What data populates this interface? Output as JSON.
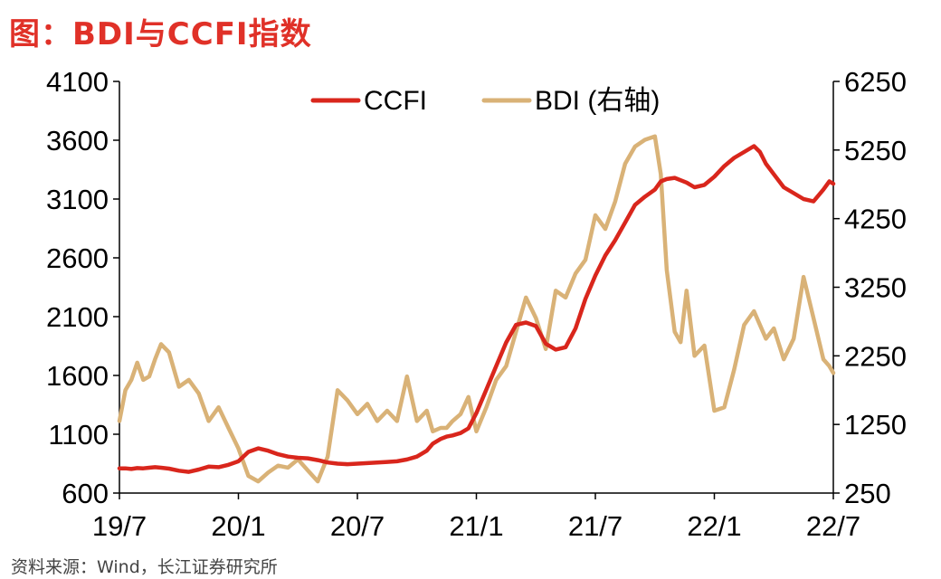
{
  "title": "图：BDI与CCFI指数",
  "source": "资料来源：Wind，长江证券研究所",
  "chart_data": {
    "type": "line",
    "x_ticks": [
      "19/7",
      "20/1",
      "20/7",
      "21/1",
      "21/7",
      "22/1",
      "22/7"
    ],
    "y_left": {
      "ticks": [
        4100,
        3600,
        3100,
        2600,
        2100,
        1600,
        1100,
        600
      ],
      "ylim": [
        600,
        4100
      ]
    },
    "y_right": {
      "ticks": [
        6250,
        5250,
        4250,
        3250,
        2250,
        1250,
        250
      ],
      "ylim": [
        250,
        6250
      ]
    },
    "legend_position": "top-center",
    "series": [
      {
        "name": "CCFI",
        "axis": "left",
        "color": "#d9261c",
        "x": [
          0,
          0.3,
          0.6,
          0.9,
          1.2,
          1.5,
          1.8,
          2.1,
          2.5,
          3.0,
          3.5,
          4.0,
          4.5,
          5.0,
          5.5,
          6.0,
          6.5,
          7.0,
          7.5,
          8.0,
          8.5,
          9.0,
          9.5,
          10.0,
          10.5,
          11.0,
          11.5,
          12.0,
          12.5,
          13.0,
          13.5,
          14.0,
          14.5,
          15.0,
          15.5,
          15.8,
          16.2,
          16.5,
          16.8,
          17.2,
          17.6,
          18.0,
          18.5,
          19.0,
          19.5,
          20.0,
          20.5,
          21.0,
          21.5,
          22.0,
          22.5,
          23.0,
          23.5,
          24.0,
          24.5,
          25.0,
          25.5,
          26.0,
          26.5,
          27.0,
          27.3,
          27.6,
          28.0,
          28.3,
          28.6,
          29.0,
          29.5,
          30.0,
          30.5,
          31.0,
          31.5,
          32.0,
          32.3,
          32.6,
          33.0,
          33.5,
          34.0,
          34.5,
          35.0,
          35.5,
          35.8,
          36.0
        ],
        "values": [
          810,
          810,
          805,
          812,
          810,
          815,
          820,
          815,
          808,
          790,
          780,
          800,
          825,
          820,
          840,
          870,
          950,
          980,
          960,
          930,
          910,
          900,
          895,
          880,
          860,
          850,
          845,
          850,
          855,
          860,
          865,
          870,
          885,
          910,
          960,
          1020,
          1060,
          1080,
          1090,
          1110,
          1150,
          1280,
          1480,
          1680,
          1880,
          2030,
          2050,
          2020,
          1870,
          1820,
          1840,
          2000,
          2250,
          2450,
          2620,
          2750,
          2900,
          3050,
          3120,
          3180,
          3250,
          3270,
          3280,
          3260,
          3240,
          3200,
          3220,
          3290,
          3380,
          3450,
          3500,
          3550,
          3500,
          3400,
          3310,
          3200,
          3150,
          3100,
          3080,
          3180,
          3250,
          3230
        ]
      },
      {
        "name": "BDI (右轴)",
        "axis": "right",
        "color": "#d9b277",
        "x": [
          0,
          0.3,
          0.6,
          0.9,
          1.2,
          1.5,
          1.8,
          2.1,
          2.5,
          3.0,
          3.5,
          4.0,
          4.5,
          5.0,
          5.5,
          6.0,
          6.5,
          7.0,
          7.5,
          8.0,
          8.5,
          9.0,
          9.5,
          10.0,
          10.5,
          11.0,
          11.5,
          12.0,
          12.5,
          13.0,
          13.5,
          14.0,
          14.5,
          15.0,
          15.5,
          15.8,
          16.2,
          16.5,
          16.8,
          17.2,
          17.6,
          18.0,
          18.5,
          19.0,
          19.5,
          20.0,
          20.5,
          21.0,
          21.5,
          22.0,
          22.5,
          23.0,
          23.5,
          24.0,
          24.5,
          25.0,
          25.5,
          26.0,
          26.5,
          27.0,
          27.3,
          27.6,
          28.0,
          28.3,
          28.6,
          29.0,
          29.5,
          30.0,
          30.5,
          31.0,
          31.5,
          32.0,
          32.3,
          32.6,
          33.0,
          33.5,
          34.0,
          34.5,
          35.0,
          35.5,
          35.8,
          36.0
        ],
        "values": [
          1300,
          1750,
          1900,
          2150,
          1900,
          1950,
          2200,
          2420,
          2300,
          1800,
          1900,
          1700,
          1300,
          1500,
          1200,
          900,
          500,
          420,
          550,
          650,
          620,
          740,
          580,
          420,
          780,
          1750,
          1600,
          1400,
          1550,
          1300,
          1450,
          1300,
          1950,
          1300,
          1450,
          1150,
          1200,
          1200,
          1300,
          1400,
          1650,
          1150,
          1500,
          1900,
          2100,
          2600,
          3100,
          2800,
          2350,
          3200,
          3100,
          3450,
          3650,
          4300,
          4100,
          4500,
          5050,
          5300,
          5400,
          5450,
          4900,
          3500,
          2600,
          2450,
          3200,
          2250,
          2400,
          1450,
          1500,
          2050,
          2700,
          2900,
          2700,
          2500,
          2650,
          2200,
          2500,
          3400,
          2800,
          2200,
          2100,
          2000
        ]
      }
    ]
  }
}
